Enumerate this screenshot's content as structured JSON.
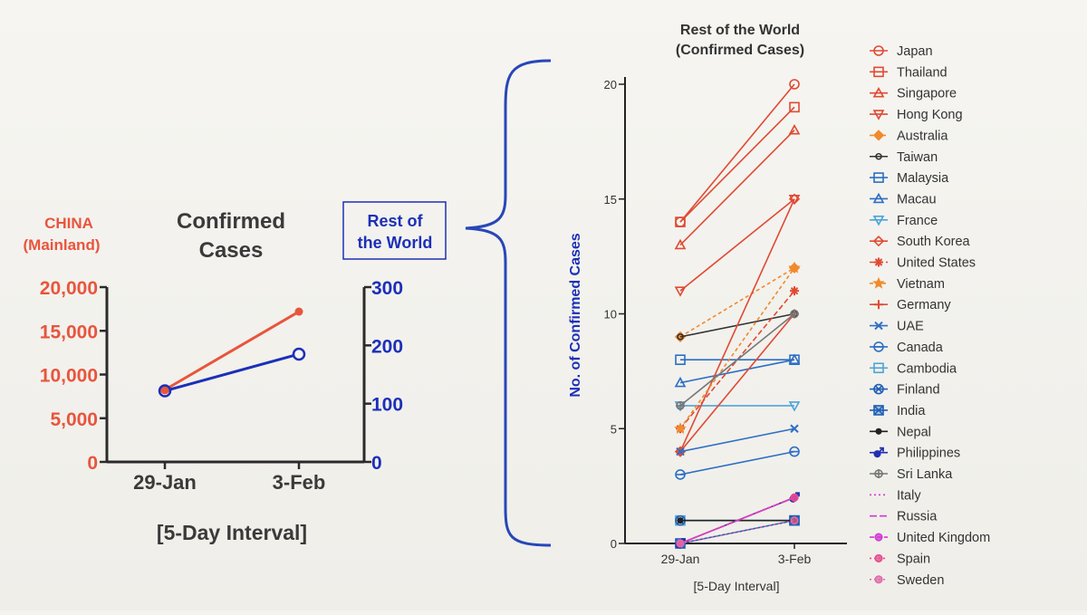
{
  "colors": {
    "china": "#e8553d",
    "row": "#1c2fb8",
    "axis": "#2b2b2b",
    "text": "#3a3a3a"
  },
  "chart_data": [
    {
      "type": "line",
      "title": "Confirmed Cases",
      "left_label": "CHINA (Mainland)",
      "right_label": "Rest of the World",
      "xlabel": "[5-Day Interval]",
      "categories": [
        "29-Jan",
        "3-Feb"
      ],
      "left_axis": {
        "ylim": [
          0,
          20000
        ],
        "ticks": [
          "0",
          "5,000",
          "10,000",
          "15,000",
          "20,000"
        ],
        "tick_values": [
          0,
          5000,
          10000,
          15000,
          20000
        ]
      },
      "right_axis": {
        "ylim": [
          0,
          300
        ],
        "ticks": [
          "0",
          "100",
          "200",
          "300"
        ],
        "tick_values": [
          0,
          100,
          200,
          300
        ]
      },
      "series": [
        {
          "name": "CHINA (Mainland)",
          "axis": "left",
          "values": [
            8250,
            17200
          ]
        },
        {
          "name": "Rest of the World",
          "axis": "right",
          "values": [
            122,
            185
          ]
        }
      ]
    },
    {
      "type": "line",
      "title": "Rest of the World (Confirmed Cases)",
      "title_lines": [
        "Rest of the World",
        "(Confirmed Cases)"
      ],
      "xlabel": "[5-Day Interval]",
      "ylabel": "No. of Confirmed Cases",
      "categories": [
        "29-Jan",
        "3-Feb"
      ],
      "ylim": [
        0,
        20
      ],
      "ticks": [
        "0",
        "5",
        "10",
        "15",
        "20"
      ],
      "tick_values": [
        0,
        5,
        10,
        15,
        20
      ],
      "legend_position": "right",
      "series": [
        {
          "name": "Japan",
          "values": [
            14,
            20
          ],
          "color": "#e04a33",
          "marker": "circle",
          "dash": ""
        },
        {
          "name": "Thailand",
          "values": [
            14,
            19
          ],
          "color": "#e04a33",
          "marker": "square",
          "dash": ""
        },
        {
          "name": "Singapore",
          "values": [
            13,
            18
          ],
          "color": "#e04a33",
          "marker": "triangle",
          "dash": ""
        },
        {
          "name": "Hong Kong",
          "values": [
            11,
            15
          ],
          "color": "#e04a33",
          "marker": "triangle-down",
          "dash": ""
        },
        {
          "name": "Australia",
          "values": [
            9,
            12
          ],
          "color": "#f08a2c",
          "marker": "diamond-filled",
          "dash": "4,3"
        },
        {
          "name": "Taiwan",
          "values": [
            9,
            10
          ],
          "color": "#333333",
          "marker": "circle-small",
          "dash": ""
        },
        {
          "name": "Malaysia",
          "values": [
            8,
            8
          ],
          "color": "#2d6fc4",
          "marker": "square",
          "dash": ""
        },
        {
          "name": "Macau",
          "values": [
            7,
            8
          ],
          "color": "#2d6fc4",
          "marker": "triangle",
          "dash": ""
        },
        {
          "name": "France",
          "values": [
            6,
            6
          ],
          "color": "#4da4d8",
          "marker": "triangle-down",
          "dash": ""
        },
        {
          "name": "South Korea",
          "values": [
            4,
            15
          ],
          "color": "#e04a33",
          "marker": "diamond",
          "dash": ""
        },
        {
          "name": "United States",
          "values": [
            5,
            11
          ],
          "color": "#e04a33",
          "marker": "asterisk",
          "dash": "6,3"
        },
        {
          "name": "Vietnam",
          "values": [
            5,
            12
          ],
          "color": "#f08a2c",
          "marker": "star",
          "dash": "4,3"
        },
        {
          "name": "Germany",
          "values": [
            4,
            10
          ],
          "color": "#e04a33",
          "marker": "plus",
          "dash": ""
        },
        {
          "name": "UAE",
          "values": [
            4,
            5
          ],
          "color": "#2d6fc4",
          "marker": "cross",
          "dash": ""
        },
        {
          "name": "Canada",
          "values": [
            3,
            4
          ],
          "color": "#2d6fc4",
          "marker": "circle-line",
          "dash": ""
        },
        {
          "name": "Cambodia",
          "values": [
            1,
            1
          ],
          "color": "#4da4d8",
          "marker": "square-line",
          "dash": ""
        },
        {
          "name": "Finland",
          "values": [
            1,
            1
          ],
          "color": "#1f5fb5",
          "marker": "circle-cross",
          "dash": ""
        },
        {
          "name": "India",
          "values": [
            0,
            1
          ],
          "color": "#1f5fb5",
          "marker": "square-x",
          "dash": ""
        },
        {
          "name": "Nepal",
          "values": [
            1,
            1
          ],
          "color": "#222222",
          "marker": "dot",
          "dash": ""
        },
        {
          "name": "Philippines",
          "values": [
            0,
            2
          ],
          "color": "#2230b0",
          "marker": "male",
          "dash": ""
        },
        {
          "name": "Sri Lanka",
          "values": [
            6,
            10
          ],
          "color": "#777777",
          "marker": "circle-plus",
          "dash": ""
        },
        {
          "name": "Italy",
          "values": [
            0,
            2
          ],
          "color": "#d23ad2",
          "marker": "none",
          "dash": "2,3"
        },
        {
          "name": "Russia",
          "values": [
            0,
            2
          ],
          "color": "#d23ad2",
          "marker": "none",
          "dash": "8,3"
        },
        {
          "name": "United Kingdom",
          "values": [
            0,
            2
          ],
          "color": "#d23ad2",
          "marker": "circle-filled",
          "dash": "5,3"
        },
        {
          "name": "Spain",
          "values": [
            0,
            2
          ],
          "color": "#e64a8c",
          "marker": "circle-filled",
          "dash": "2,3"
        },
        {
          "name": "Sweden",
          "values": [
            0,
            1
          ],
          "color": "#e06aa8",
          "marker": "circle-filled",
          "dash": "2,3"
        }
      ]
    }
  ]
}
